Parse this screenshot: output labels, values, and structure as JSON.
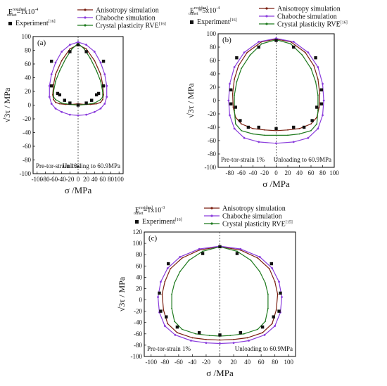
{
  "chart_data": [
    {
      "type": "line",
      "panel": "(a)",
      "offset_label": "E",
      "offset_sub": "offset",
      "offset_sup": "residual",
      "offset_value": "=1x10",
      "offset_exp": "-4",
      "legend": [
        "Anisotropy simulation",
        "Chaboche simulation",
        "Crystal plasticity RVE",
        "Experiment"
      ],
      "legend_refs": [
        "",
        "",
        "[16]",
        "[16]"
      ],
      "left_note": "Pre-tor-strain 1%",
      "right_note": "Unloading to 60.9MPa",
      "xlabel": "σ /MPa",
      "ylabel": "√3τ / MPa",
      "xlim": [
        -110,
        110
      ],
      "ylim": [
        -100,
        100
      ],
      "xticks": [
        -100,
        -80,
        -60,
        -40,
        -20,
        0,
        20,
        40,
        60,
        80,
        100
      ],
      "yticks": [
        -100,
        -80,
        -60,
        -40,
        -20,
        0,
        20,
        40,
        60,
        80,
        100
      ],
      "series": [
        {
          "name": "Anisotropy simulation",
          "color": "#7a1f10",
          "marker": "line",
          "x": [
            0,
            20,
            40,
            55,
            60,
            62,
            60,
            55,
            45,
            30,
            15,
            0,
            -15,
            -30,
            -45,
            -55,
            -60,
            -62,
            -60,
            -55,
            -40,
            -20,
            0
          ],
          "y": [
            88,
            82,
            65,
            45,
            30,
            15,
            8,
            4,
            2,
            1,
            1,
            2,
            1,
            1,
            2,
            4,
            8,
            15,
            30,
            45,
            65,
            82,
            88
          ]
        },
        {
          "name": "Chaboche simulation",
          "color": "#8a3cdc",
          "marker": "dot",
          "x": [
            0,
            20,
            40,
            55,
            65,
            70,
            70,
            65,
            55,
            40,
            20,
            0,
            -20,
            -40,
            -55,
            -65,
            -70,
            -70,
            -65,
            -55,
            -40,
            -20,
            0
          ],
          "y": [
            92,
            88,
            78,
            62,
            45,
            28,
            12,
            2,
            -5,
            -10,
            -14,
            -15,
            -14,
            -10,
            -5,
            2,
            12,
            28,
            45,
            62,
            78,
            88,
            92
          ]
        },
        {
          "name": "Crystal plasticity RVE",
          "color": "#1f7a1f",
          "marker": "line",
          "x": [
            0,
            15,
            30,
            45,
            55,
            60,
            60,
            55,
            40,
            20,
            0,
            -20,
            -40,
            -55,
            -60,
            -60,
            -55,
            -45,
            -30,
            -15,
            0
          ],
          "y": [
            90,
            82,
            68,
            50,
            35,
            20,
            12,
            8,
            3,
            1,
            0,
            1,
            3,
            8,
            12,
            20,
            35,
            50,
            68,
            82,
            90
          ]
        }
      ],
      "experiment": {
        "x": [
          -65,
          -65,
          -45,
          -33,
          -20,
          0,
          20,
          33,
          45,
          62,
          62,
          -20,
          20,
          0,
          -50,
          50
        ],
        "y": [
          64,
          28,
          15,
          7,
          3,
          0,
          3,
          7,
          15,
          64,
          28,
          78,
          78,
          88,
          17,
          17
        ]
      }
    },
    {
      "type": "line",
      "panel": "(b)",
      "offset_label": "E",
      "offset_sub": "offset",
      "offset_sup": "residual",
      "offset_value": "=5x10",
      "offset_exp": "-4",
      "legend": [
        "Anisotropy simulation",
        "Chaboche simulation",
        "Crystal plasticity RVE",
        "Experiment"
      ],
      "legend_refs": [
        "",
        "",
        "[16]",
        "[16]"
      ],
      "left_note": "Pre-tor-strain 1%",
      "right_note": "Unloading to 60.9MPa",
      "xlabel": "σ /MPa",
      "ylabel": "√3τ / MPa",
      "xlim": [
        -100,
        100
      ],
      "ylim": [
        -100,
        100
      ],
      "xticks": [
        -80,
        -60,
        -40,
        -20,
        0,
        20,
        40,
        60,
        80,
        100
      ],
      "yticks": [
        -100,
        -80,
        -60,
        -40,
        -20,
        0,
        20,
        40,
        60,
        80,
        100
      ],
      "series": [
        {
          "name": "Anisotropy simulation",
          "color": "#7a1f10",
          "marker": "line",
          "x": [
            0,
            25,
            50,
            65,
            72,
            75,
            74,
            70,
            60,
            40,
            20,
            0,
            -20,
            -40,
            -60,
            -70,
            -74,
            -75,
            -72,
            -65,
            -50,
            -25,
            0
          ],
          "y": [
            92,
            88,
            72,
            52,
            32,
            10,
            -10,
            -25,
            -35,
            -42,
            -44,
            -45,
            -44,
            -42,
            -35,
            -25,
            -10,
            10,
            32,
            52,
            72,
            88,
            92
          ]
        },
        {
          "name": "Chaboche simulation",
          "color": "#8a3cdc",
          "marker": "dot",
          "x": [
            0,
            30,
            55,
            72,
            80,
            82,
            80,
            72,
            55,
            30,
            0,
            -30,
            -55,
            -72,
            -80,
            -82,
            -80,
            -72,
            -55,
            -30,
            0
          ],
          "y": [
            93,
            88,
            72,
            50,
            25,
            0,
            -22,
            -42,
            -56,
            -62,
            -64,
            -62,
            -56,
            -42,
            -22,
            0,
            25,
            50,
            72,
            88,
            93
          ]
        },
        {
          "name": "Crystal plasticity RVE",
          "color": "#1f7a1f",
          "marker": "line",
          "x": [
            0,
            25,
            45,
            60,
            68,
            72,
            72,
            70,
            60,
            40,
            20,
            0,
            -20,
            -40,
            -60,
            -70,
            -72,
            -72,
            -68,
            -60,
            -45,
            -25,
            0
          ],
          "y": [
            91,
            85,
            68,
            48,
            28,
            8,
            -15,
            -35,
            -45,
            -50,
            -52,
            -52,
            -52,
            -50,
            -45,
            -35,
            -15,
            8,
            28,
            48,
            68,
            85,
            91
          ]
        }
      ],
      "experiment": {
        "x": [
          -78,
          -70,
          -62,
          -48,
          -30,
          0,
          30,
          48,
          62,
          70,
          78,
          -68,
          -78,
          68,
          78,
          -30,
          30,
          0
        ],
        "y": [
          16,
          -10,
          -30,
          -40,
          -40,
          -42,
          -40,
          -40,
          -30,
          -10,
          16,
          64,
          -5,
          64,
          -5,
          80,
          80,
          90
        ]
      }
    },
    {
      "type": "line",
      "panel": "(c)",
      "offset_label": "E",
      "offset_sub": "offset",
      "offset_sup": "residual",
      "offset_value": "=1x10",
      "offset_exp": "-3",
      "legend": [
        "Anisotropy simulation",
        "Chaboche simulation",
        "Crystal plasticity RVE",
        "Experiment"
      ],
      "legend_refs": [
        "",
        "",
        "[15]",
        "[16]"
      ],
      "left_note": "Pre-tor-strain 1%",
      "right_note": "Unloading to 60.9MPa",
      "xlabel": "σ /MPa",
      "ylabel": "√3τ / MPa",
      "xlim": [
        -110,
        110
      ],
      "ylim": [
        -100,
        120
      ],
      "xticks": [
        -100,
        -80,
        -60,
        -40,
        -20,
        0,
        20,
        40,
        60,
        80,
        100
      ],
      "yticks": [
        -100,
        -80,
        -60,
        -40,
        -20,
        0,
        20,
        40,
        60,
        80,
        100,
        120
      ],
      "series": [
        {
          "name": "Anisotropy simulation",
          "color": "#7a1f10",
          "marker": "line",
          "x": [
            0,
            30,
            55,
            72,
            80,
            84,
            82,
            76,
            62,
            40,
            20,
            0,
            -20,
            -40,
            -62,
            -76,
            -82,
            -84,
            -80,
            -72,
            -55,
            -30,
            0
          ],
          "y": [
            94,
            88,
            74,
            55,
            32,
            10,
            -18,
            -42,
            -58,
            -67,
            -70,
            -71,
            -70,
            -67,
            -58,
            -42,
            -18,
            10,
            32,
            55,
            74,
            88,
            94
          ]
        },
        {
          "name": "Chaboche simulation",
          "color": "#8a3cdc",
          "marker": "dot",
          "x": [
            0,
            30,
            58,
            76,
            86,
            90,
            88,
            80,
            65,
            42,
            20,
            0,
            -20,
            -42,
            -65,
            -80,
            -88,
            -90,
            -86,
            -76,
            -58,
            -30,
            0
          ],
          "y": [
            95,
            90,
            76,
            56,
            32,
            5,
            -22,
            -46,
            -62,
            -72,
            -76,
            -77,
            -76,
            -72,
            -62,
            -46,
            -22,
            5,
            32,
            56,
            76,
            90,
            95
          ]
        },
        {
          "name": "Crystal plasticity RVE",
          "color": "#1f7a1f",
          "marker": "line",
          "x": [
            0,
            25,
            45,
            58,
            66,
            70,
            70,
            66,
            55,
            35,
            15,
            0,
            -15,
            -35,
            -55,
            -66,
            -70,
            -70,
            -66,
            -58,
            -45,
            -25,
            0
          ],
          "y": [
            94,
            86,
            70,
            50,
            30,
            10,
            -15,
            -38,
            -52,
            -60,
            -63,
            -64,
            -63,
            -60,
            -52,
            -38,
            -15,
            10,
            30,
            50,
            70,
            86,
            94
          ]
        }
      ],
      "experiment": {
        "x": [
          -88,
          -86,
          -78,
          -62,
          -30,
          0,
          30,
          62,
          78,
          86,
          88,
          -75,
          75,
          -25,
          25,
          0
        ],
        "y": [
          12,
          -20,
          -30,
          -48,
          -58,
          -62,
          -58,
          -48,
          -30,
          -20,
          12,
          64,
          64,
          82,
          82,
          94
        ]
      }
    }
  ]
}
